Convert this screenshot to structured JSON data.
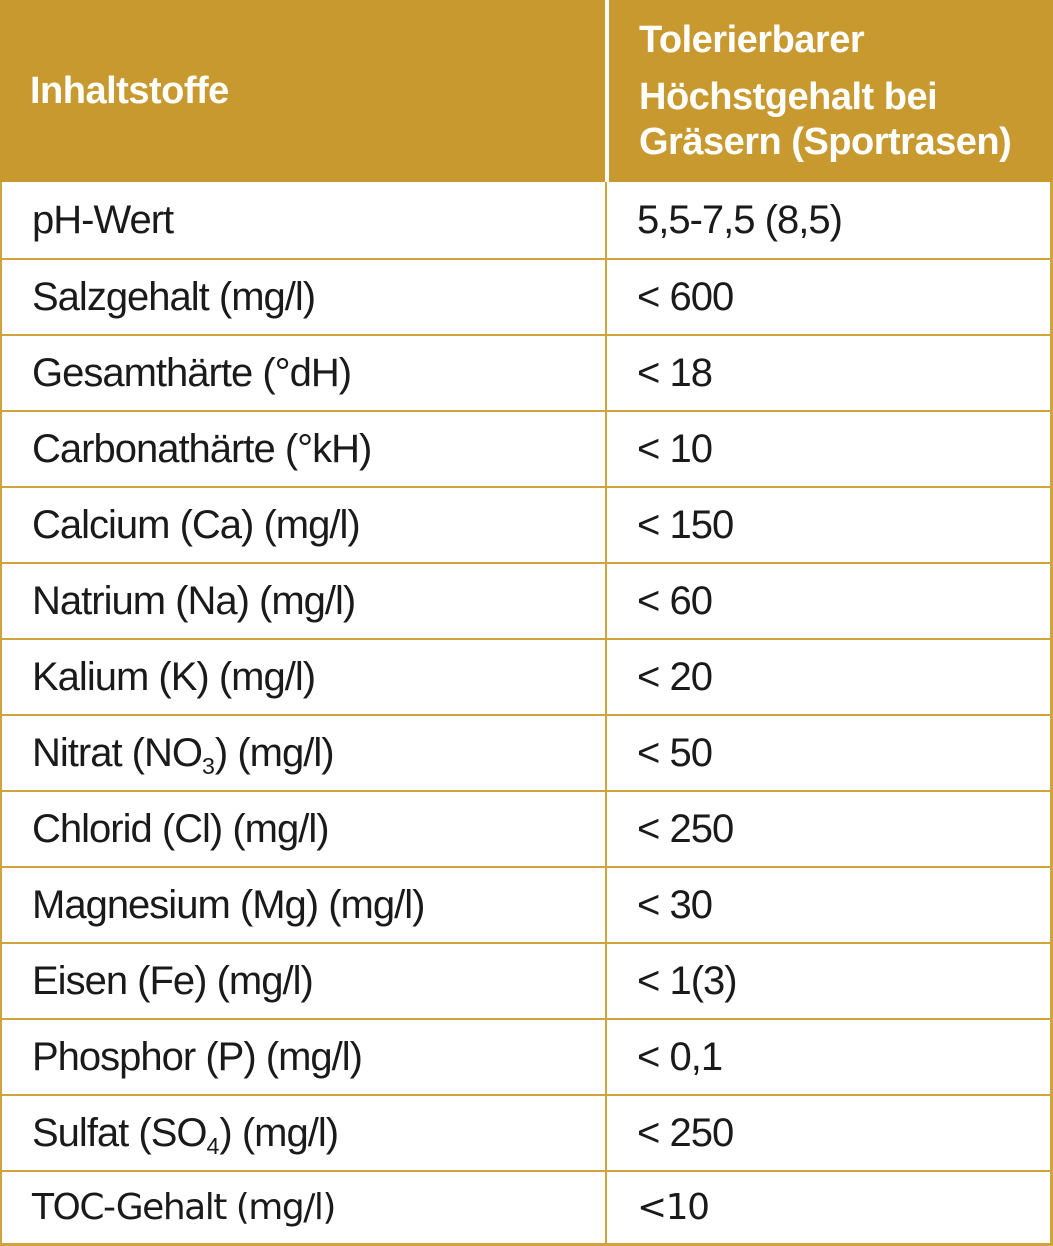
{
  "table": {
    "header": {
      "col1": "Inhaltstoffe",
      "col2_lines": [
        "Tolerierbarer",
        "Höchstgehalt bei",
        "Gräsern (Sportrasen)"
      ]
    },
    "rows": [
      {
        "label": {
          "pre": "pH-Wert",
          "sub": "",
          "post": ""
        },
        "value": "5,5-7,5 (8,5)"
      },
      {
        "label": {
          "pre": "Salzgehalt (mg/l)",
          "sub": "",
          "post": ""
        },
        "value": "< 600"
      },
      {
        "label": {
          "pre": "Gesamthärte (°dH)",
          "sub": "",
          "post": ""
        },
        "value": "< 18"
      },
      {
        "label": {
          "pre": "Carbonathärte (°kH)",
          "sub": "",
          "post": ""
        },
        "value": "< 10"
      },
      {
        "label": {
          "pre": "Calcium (Ca) (mg/l)",
          "sub": "",
          "post": ""
        },
        "value": "< 150"
      },
      {
        "label": {
          "pre": "Natrium (Na) (mg/l)",
          "sub": "",
          "post": ""
        },
        "value": "< 60"
      },
      {
        "label": {
          "pre": "Kalium (K) (mg/l)",
          "sub": "",
          "post": ""
        },
        "value": "< 20"
      },
      {
        "label": {
          "pre": "Nitrat (NO",
          "sub": "3",
          "post": ") (mg/l)"
        },
        "value": "< 50"
      },
      {
        "label": {
          "pre": "Chlorid (Cl) (mg/l)",
          "sub": "",
          "post": ""
        },
        "value": "< 250"
      },
      {
        "label": {
          "pre": "Magnesium (Mg) (mg/l)",
          "sub": "",
          "post": ""
        },
        "value": "< 30"
      },
      {
        "label": {
          "pre": "Eisen (Fe) (mg/l)",
          "sub": "",
          "post": ""
        },
        "value": "< 1(3)"
      },
      {
        "label": {
          "pre": "Phosphor (P) (mg/l)",
          "sub": "",
          "post": ""
        },
        "value": "< 0,1"
      },
      {
        "label": {
          "pre": "Sulfat (SO",
          "sub": "4",
          "post": ") (mg/l)"
        },
        "value": "< 250"
      },
      {
        "label": {
          "pre": "TOC-Gehalt (mg/l)",
          "sub": "",
          "post": ""
        },
        "value": "<10"
      }
    ],
    "colors": {
      "header_bg": "#C8992F",
      "border": "#CFA43F",
      "header_text": "#FFFFFF",
      "body_text": "#1A1A1A",
      "row_bg": "#FFFFFF"
    }
  }
}
